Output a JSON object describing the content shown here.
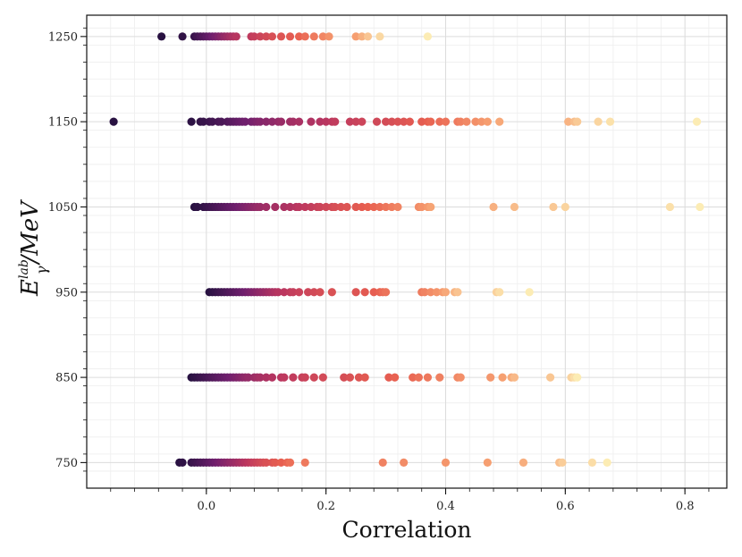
{
  "chart_data": {
    "type": "scatter",
    "title": "",
    "xlabel": "Correlation",
    "ylabel_main": "E",
    "ylabel_sub": "γ",
    "ylabel_sup": "lab",
    "ylabel_tail": "/MeV",
    "xlim": [
      -0.2,
      0.87
    ],
    "ylim": [
      720,
      1275
    ],
    "xticks": [
      0.0,
      0.2,
      0.4,
      0.6,
      0.8
    ],
    "xtick_labels": [
      "0.0",
      "0.2",
      "0.4",
      "0.6",
      "0.8"
    ],
    "yticks": [
      750,
      850,
      950,
      1050,
      1150,
      1250
    ],
    "ytick_labels": [
      "750",
      "850",
      "950",
      "1050",
      "1150",
      "1250"
    ],
    "grid": true,
    "colormap": "magma",
    "series": [
      {
        "name": "750",
        "y": 750,
        "x": [
          -0.045,
          -0.04,
          -0.025,
          -0.02,
          -0.015,
          -0.01,
          -0.005,
          0.0,
          0.005,
          0.01,
          0.015,
          0.02,
          0.025,
          0.03,
          0.035,
          0.04,
          0.045,
          0.05,
          0.055,
          0.06,
          0.065,
          0.07,
          0.075,
          0.08,
          0.085,
          0.09,
          0.095,
          0.1,
          0.11,
          0.115,
          0.125,
          0.135,
          0.14,
          0.165,
          0.295,
          0.33,
          0.4,
          0.47,
          0.53,
          0.59,
          0.595,
          0.645,
          0.67
        ]
      },
      {
        "name": "850",
        "y": 850,
        "x": [
          -0.025,
          -0.02,
          -0.015,
          -0.01,
          -0.005,
          0.0,
          0.005,
          0.01,
          0.015,
          0.02,
          0.025,
          0.03,
          0.035,
          0.04,
          0.045,
          0.05,
          0.055,
          0.06,
          0.065,
          0.07,
          0.08,
          0.085,
          0.09,
          0.1,
          0.11,
          0.125,
          0.13,
          0.145,
          0.16,
          0.165,
          0.18,
          0.195,
          0.23,
          0.24,
          0.255,
          0.265,
          0.305,
          0.315,
          0.345,
          0.355,
          0.37,
          0.39,
          0.42,
          0.425,
          0.475,
          0.495,
          0.51,
          0.515,
          0.575,
          0.61,
          0.615,
          0.62
        ]
      },
      {
        "name": "950",
        "y": 950,
        "x": [
          0.005,
          0.01,
          0.015,
          0.02,
          0.025,
          0.03,
          0.035,
          0.04,
          0.045,
          0.05,
          0.055,
          0.06,
          0.065,
          0.07,
          0.075,
          0.08,
          0.085,
          0.09,
          0.095,
          0.1,
          0.105,
          0.11,
          0.115,
          0.12,
          0.13,
          0.14,
          0.145,
          0.155,
          0.17,
          0.18,
          0.19,
          0.21,
          0.25,
          0.265,
          0.28,
          0.29,
          0.295,
          0.3,
          0.36,
          0.365,
          0.375,
          0.385,
          0.395,
          0.4,
          0.415,
          0.42,
          0.485,
          0.49,
          0.54
        ]
      },
      {
        "name": "1050",
        "y": 1050,
        "x": [
          -0.02,
          -0.015,
          -0.005,
          0.0,
          0.005,
          0.01,
          0.015,
          0.02,
          0.025,
          0.03,
          0.035,
          0.04,
          0.045,
          0.05,
          0.055,
          0.06,
          0.065,
          0.07,
          0.075,
          0.08,
          0.085,
          0.09,
          0.1,
          0.115,
          0.13,
          0.14,
          0.15,
          0.155,
          0.165,
          0.175,
          0.185,
          0.19,
          0.2,
          0.21,
          0.215,
          0.225,
          0.235,
          0.25,
          0.26,
          0.27,
          0.28,
          0.29,
          0.3,
          0.31,
          0.32,
          0.355,
          0.36,
          0.37,
          0.375,
          0.48,
          0.515,
          0.58,
          0.6,
          0.775,
          0.825
        ]
      },
      {
        "name": "1150",
        "y": 1150,
        "x": [
          -0.155,
          -0.025,
          -0.01,
          -0.005,
          0.005,
          0.01,
          0.02,
          0.025,
          0.035,
          0.04,
          0.045,
          0.05,
          0.055,
          0.06,
          0.065,
          0.075,
          0.08,
          0.085,
          0.09,
          0.1,
          0.11,
          0.12,
          0.125,
          0.14,
          0.145,
          0.155,
          0.175,
          0.19,
          0.2,
          0.21,
          0.215,
          0.24,
          0.25,
          0.26,
          0.285,
          0.3,
          0.31,
          0.32,
          0.33,
          0.34,
          0.36,
          0.37,
          0.375,
          0.39,
          0.4,
          0.42,
          0.425,
          0.435,
          0.45,
          0.46,
          0.47,
          0.49,
          0.605,
          0.615,
          0.62,
          0.655,
          0.675,
          0.82
        ]
      },
      {
        "name": "1250",
        "y": 1250,
        "x": [
          -0.075,
          -0.04,
          -0.02,
          -0.015,
          -0.01,
          -0.005,
          0.0,
          0.005,
          0.01,
          0.015,
          0.02,
          0.025,
          0.03,
          0.035,
          0.04,
          0.045,
          0.05,
          0.075,
          0.08,
          0.09,
          0.1,
          0.11,
          0.125,
          0.14,
          0.155,
          0.165,
          0.18,
          0.195,
          0.205,
          0.25,
          0.26,
          0.27,
          0.29,
          0.37
        ]
      }
    ]
  }
}
